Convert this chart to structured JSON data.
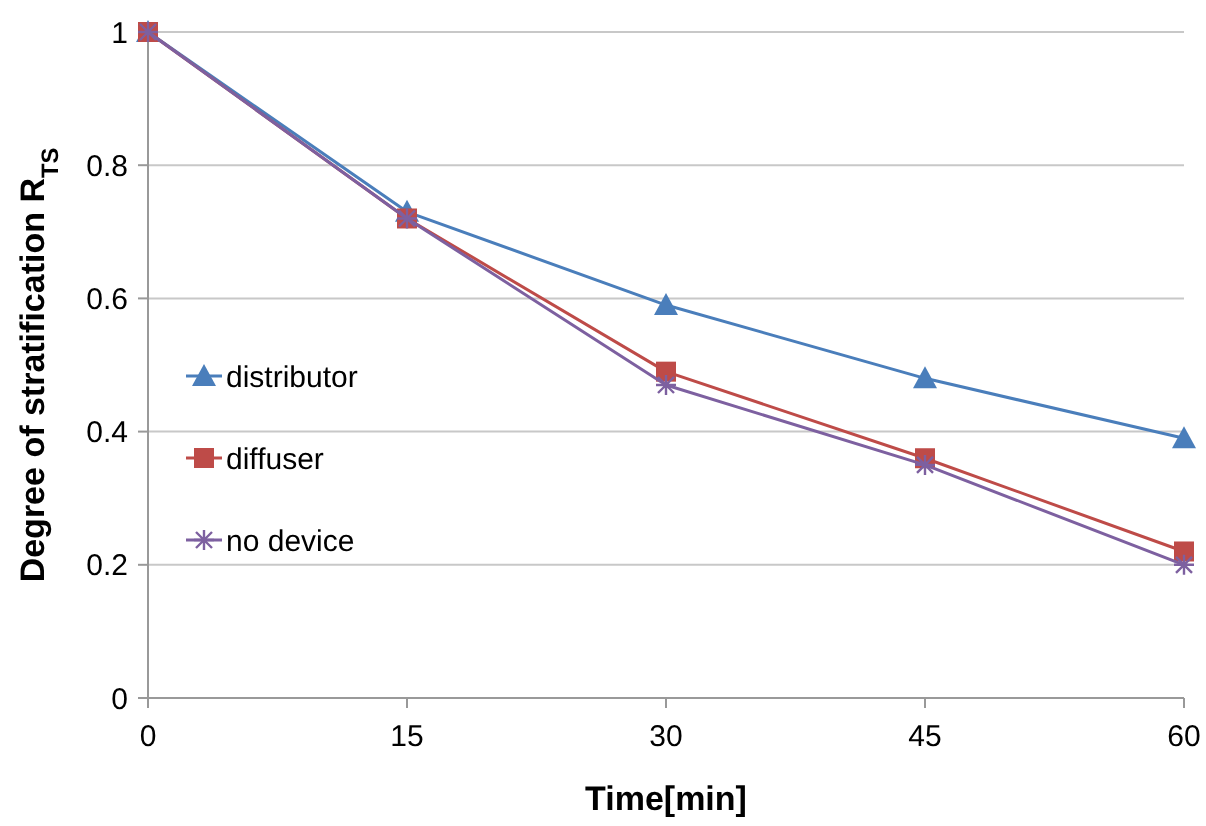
{
  "chart_data": {
    "type": "line",
    "xlabel": "Time[min]",
    "ylabel": "Degree of stratification R$_{TS}$",
    "x": [
      0,
      15,
      30,
      45,
      60
    ],
    "xlim": [
      0,
      60
    ],
    "xticks": [
      0,
      15,
      30,
      45,
      60
    ],
    "ylim": [
      0,
      1
    ],
    "yticks": [
      0,
      0.2,
      0.4,
      0.6,
      0.8,
      1
    ],
    "grid": "y",
    "legend": "left",
    "series": [
      {
        "name": "distributor",
        "color": "#4a7ebb",
        "marker": "triangle",
        "values": [
          1,
          0.73,
          0.59,
          0.48,
          0.39
        ]
      },
      {
        "name": "diffuser",
        "color": "#be4b48",
        "marker": "square",
        "values": [
          1,
          0.72,
          0.49,
          0.36,
          0.22
        ]
      },
      {
        "name": "no device",
        "color": "#7d60a0",
        "marker": "cross",
        "values": [
          1,
          0.72,
          0.47,
          0.35,
          0.2
        ]
      }
    ]
  }
}
